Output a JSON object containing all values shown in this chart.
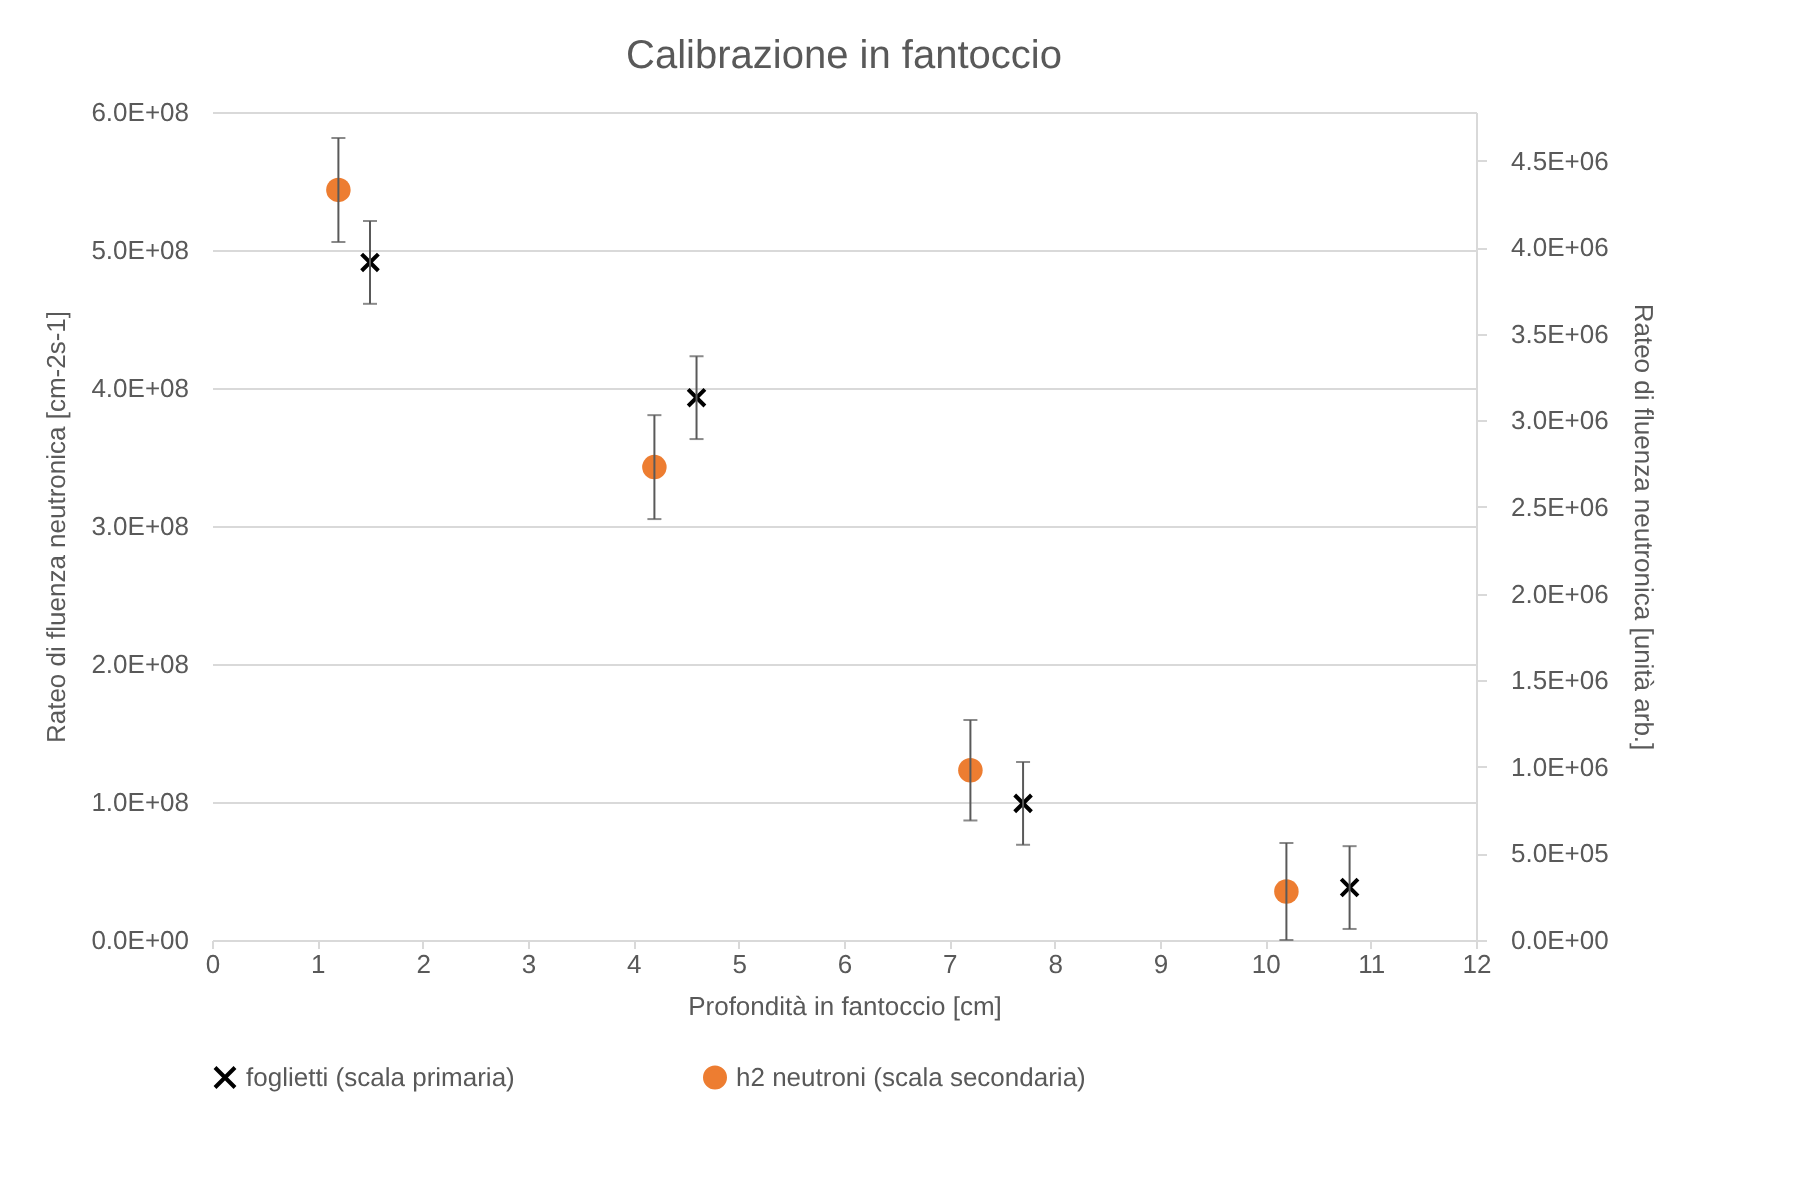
{
  "chart_data": {
    "type": "scatter",
    "title": "Calibrazione in fantoccio",
    "xlabel": "Profondità in fantoccio [cm]",
    "ylabel": "Rateo di fluenza neutronica [cm-2s-1]",
    "y2label": "Rateo di fluenza neutronica [unità arb.]",
    "xlim": [
      0,
      12
    ],
    "xticks": [
      0,
      1,
      2,
      3,
      4,
      5,
      6,
      7,
      8,
      9,
      10,
      11,
      12
    ],
    "ylim": [
      0,
      600000000
    ],
    "yticks": [
      {
        "value": 0,
        "label": "0.0E+00"
      },
      {
        "value": 100000000,
        "label": "1.0E+08"
      },
      {
        "value": 200000000,
        "label": "2.0E+08"
      },
      {
        "value": 300000000,
        "label": "3.0E+08"
      },
      {
        "value": 400000000,
        "label": "4.0E+08"
      },
      {
        "value": 500000000,
        "label": "5.0E+08"
      },
      {
        "value": 600000000,
        "label": "6.0E+08"
      }
    ],
    "y2lim": [
      0,
      4780000
    ],
    "y2ticks": [
      {
        "value": 0,
        "label": "0.0E+00"
      },
      {
        "value": 500000,
        "label": "5.0E+05"
      },
      {
        "value": 1000000,
        "label": "1.0E+06"
      },
      {
        "value": 1500000,
        "label": "1.5E+06"
      },
      {
        "value": 2000000,
        "label": "2.0E+06"
      },
      {
        "value": 2500000,
        "label": "2.5E+06"
      },
      {
        "value": 3000000,
        "label": "3.0E+06"
      },
      {
        "value": 3500000,
        "label": "3.5E+06"
      },
      {
        "value": 4000000,
        "label": "4.0E+06"
      },
      {
        "value": 4500000,
        "label": "4.5E+06"
      }
    ],
    "grid": "y",
    "legend": "bottom",
    "series": [
      {
        "name": "foglietti (scala primaria)",
        "color": "#000000",
        "marker": "cross",
        "x": [
          1.5,
          4.6,
          7.7,
          10.8
        ],
        "values": [
          491000000,
          393000000,
          99000000,
          38000000
        ],
        "errors": [
          30000000,
          30000000,
          30000000,
          30000000
        ]
      },
      {
        "name": "h2 neutroni (scala secondaria)",
        "color": "#ed7d31",
        "marker": "circle",
        "axis": "y2",
        "x": [
          1.2,
          4.2,
          7.2,
          10.2
        ],
        "values": [
          4330000,
          2730000,
          980000,
          280000
        ],
        "errors": [
          300000,
          300000,
          290000,
          280000
        ]
      }
    ]
  }
}
